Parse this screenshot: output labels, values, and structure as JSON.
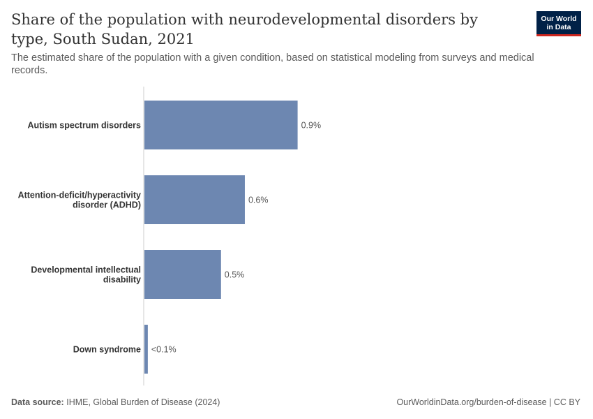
{
  "header": {
    "title": "Share of the population with neurodevelopmental disorders by type, South Sudan, 2021",
    "subtitle": "The estimated share of the population with a given condition, based on statistical modeling from surveys and medical records.",
    "logo_line1": "Our World",
    "logo_line2": "in Data"
  },
  "footer": {
    "source_label": "Data source:",
    "source_text": "IHME, Global Burden of Disease (2024)",
    "right_text": "OurWorldinData.org/burden-of-disease | CC BY"
  },
  "colors": {
    "bar": "#6d87b1",
    "axis": "#cccccc",
    "logo_bg": "#002147",
    "logo_accent": "#ce261e"
  },
  "chart_data": {
    "type": "bar",
    "orientation": "horizontal",
    "categories": [
      [
        "Autism spectrum disorders"
      ],
      [
        "Attention-deficit/hyperactivity",
        "disorder (ADHD)"
      ],
      [
        "Developmental intellectual",
        "disability"
      ],
      [
        "Down syndrome"
      ]
    ],
    "values": [
      0.9,
      0.59,
      0.45,
      0.02
    ],
    "value_labels": [
      "0.9%",
      "0.6%",
      "0.5%",
      "<0.1%"
    ],
    "xlim": [
      0,
      1.0
    ],
    "grid": false,
    "legend": "none"
  }
}
